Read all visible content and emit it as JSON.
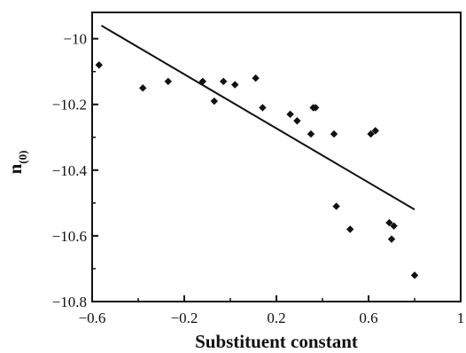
{
  "chart_data": {
    "type": "scatter",
    "title": "",
    "xlabel": "Substituent constant",
    "ylabel": {
      "main": "n",
      "subscript": "(0)"
    },
    "xlim": [
      -0.6,
      1.0
    ],
    "ylim": [
      -10.8,
      -9.92
    ],
    "xticks": [
      -0.6,
      -0.2,
      0.2,
      0.6,
      1.0
    ],
    "xtick_labels": [
      "−0.6",
      "−0.2",
      "0.2",
      "0.6",
      "1"
    ],
    "yticks": [
      -10.0,
      -10.2,
      -10.4,
      -10.6,
      -10.8
    ],
    "ytick_labels": [
      "−10",
      "−10.2",
      "−10.4",
      "−10.6",
      "−10.8"
    ],
    "grid": false,
    "legend": "none",
    "marker": "diamond",
    "points": [
      {
        "x": -0.57,
        "y": -10.08
      },
      {
        "x": -0.38,
        "y": -10.15
      },
      {
        "x": -0.27,
        "y": -10.13
      },
      {
        "x": -0.12,
        "y": -10.13
      },
      {
        "x": -0.07,
        "y": -10.19
      },
      {
        "x": -0.03,
        "y": -10.13
      },
      {
        "x": 0.02,
        "y": -10.14
      },
      {
        "x": 0.11,
        "y": -10.12
      },
      {
        "x": 0.14,
        "y": -10.21
      },
      {
        "x": 0.26,
        "y": -10.23
      },
      {
        "x": 0.29,
        "y": -10.25
      },
      {
        "x": 0.36,
        "y": -10.21
      },
      {
        "x": 0.37,
        "y": -10.21
      },
      {
        "x": 0.35,
        "y": -10.29
      },
      {
        "x": 0.45,
        "y": -10.29
      },
      {
        "x": 0.46,
        "y": -10.51
      },
      {
        "x": 0.52,
        "y": -10.58
      },
      {
        "x": 0.61,
        "y": -10.29
      },
      {
        "x": 0.63,
        "y": -10.28
      },
      {
        "x": 0.69,
        "y": -10.56
      },
      {
        "x": 0.71,
        "y": -10.57
      },
      {
        "x": 0.7,
        "y": -10.61
      },
      {
        "x": 0.8,
        "y": -10.72
      }
    ],
    "trendline": {
      "x": [
        -0.56,
        0.8
      ],
      "y": [
        -9.96,
        -10.52
      ]
    }
  }
}
